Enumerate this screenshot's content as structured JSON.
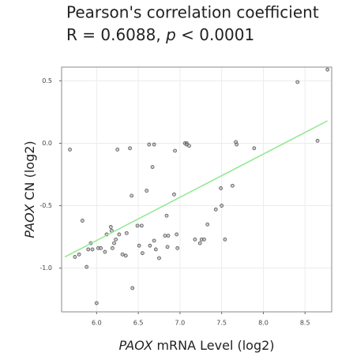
{
  "chart_data": {
    "type": "scatter",
    "title": "Pearson's correlation coefficient",
    "subtitle": [
      "R = 0.6088, ",
      "p",
      " < 0.0001"
    ],
    "x_label": [
      "PAOX",
      " mRNA Level (log2)"
    ],
    "y_label": [
      "PAOX",
      " CN (log2)"
    ],
    "xlim": [
      5.58,
      8.82
    ],
    "ylim": [
      -1.35,
      0.61
    ],
    "xticks": [
      {
        "value": 6,
        "label": "6.0"
      },
      6.5,
      {
        "value": 7,
        "label": "7.0"
      },
      7.5,
      {
        "value": 8,
        "label": "8.0"
      },
      8.5
    ],
    "yticks": [
      0.5,
      {
        "value": 0,
        "label": "0.0"
      },
      -0.5,
      {
        "value": -1,
        "label": "-1.0"
      }
    ],
    "grid": true,
    "color": "#555555",
    "x": [
      5.68,
      5.74,
      5.79,
      5.83,
      5.88,
      5.9,
      5.93,
      5.95,
      6.0,
      6.02,
      6.05,
      6.1,
      6.12,
      6.17,
      6.18,
      6.19,
      6.21,
      6.23,
      6.25,
      6.27,
      6.31,
      6.35,
      6.36,
      6.4,
      6.42,
      6.43,
      6.49,
      6.51,
      6.54,
      6.55,
      6.6,
      6.63,
      6.64,
      6.67,
      6.69,
      6.69,
      6.71,
      6.75,
      6.82,
      6.84,
      6.85,
      6.86,
      6.93,
      6.94,
      6.96,
      6.97,
      7.06,
      7.08,
      7.08,
      7.11,
      7.18,
      7.24,
      7.26,
      7.29,
      7.33,
      7.43,
      7.49,
      7.5,
      7.54,
      7.63,
      7.67,
      7.68,
      7.89,
      8.41,
      8.65,
      8.77
    ],
    "y": [
      -0.05,
      -0.91,
      -0.89,
      -0.62,
      -0.99,
      -0.85,
      -0.8,
      -0.85,
      -1.28,
      -0.84,
      -0.84,
      -0.87,
      -0.73,
      -0.67,
      -0.7,
      -0.84,
      -0.8,
      -0.77,
      -0.05,
      -0.73,
      -0.89,
      -0.9,
      -0.72,
      -0.04,
      -0.42,
      -1.16,
      -0.66,
      -0.82,
      -0.66,
      -0.88,
      -0.38,
      -0.01,
      -0.82,
      -0.19,
      -0.78,
      -0.01,
      -0.85,
      -0.92,
      -0.74,
      -0.58,
      -0.83,
      -0.74,
      -0.41,
      -0.06,
      -0.73,
      -0.84,
      0.0,
      0.0,
      -0.01,
      -0.02,
      -0.77,
      -0.8,
      -0.77,
      -0.77,
      -0.65,
      -0.53,
      -0.36,
      -0.5,
      -0.77,
      -0.34,
      0.01,
      -0.01,
      -0.04,
      0.49,
      0.02,
      0.59
    ],
    "fit": {
      "color": "#90e890",
      "x": [
        5.62,
        8.77
      ],
      "y": [
        -0.91,
        0.18
      ]
    }
  }
}
